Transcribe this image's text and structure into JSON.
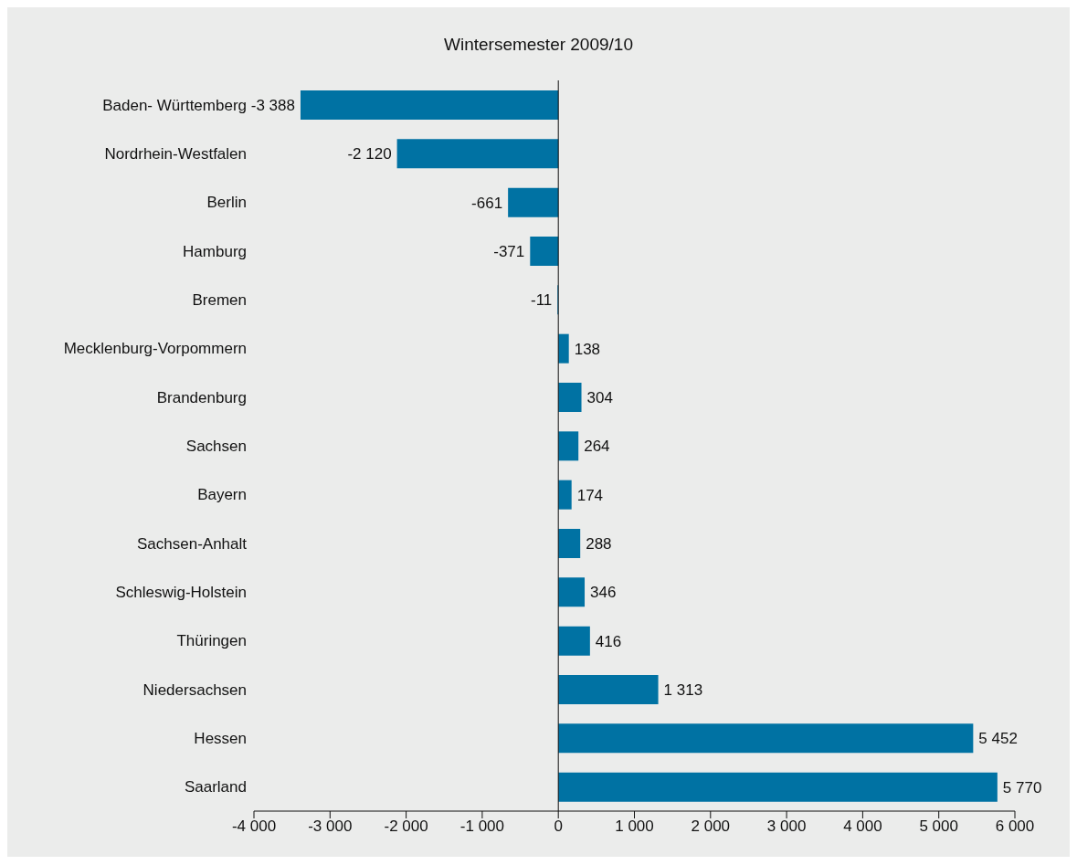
{
  "chart_data": {
    "type": "bar",
    "orientation": "horizontal",
    "title": "Wintersemester 2009/10",
    "categories": [
      "Baden- Württemberg",
      "Nordrhein-Westfalen",
      "Berlin",
      "Hamburg",
      "Bremen",
      "Mecklenburg-Vorpommern",
      "Brandenburg",
      "Sachsen",
      "Bayern",
      "Sachsen-Anhalt",
      "Schleswig-Holstein",
      "Thüringen",
      "Niedersachsen",
      "Hessen",
      "Saarland"
    ],
    "values": [
      -3388,
      -2120,
      -661,
      -371,
      -11,
      138,
      304,
      264,
      174,
      288,
      346,
      416,
      1313,
      5452,
      5770
    ],
    "value_labels": [
      "-3 388",
      "-2 120",
      "-661",
      "-371",
      "-11",
      "138",
      "304",
      "264",
      "174",
      "288",
      "346",
      "416",
      "1 313",
      "5 452",
      "5 770"
    ],
    "color": "#0072a3",
    "xlim": [
      -4000,
      6000
    ],
    "xticks": [
      {
        "value": -4000,
        "label": "-4 000"
      },
      {
        "value": -3000,
        "label": "-3 000"
      },
      {
        "value": -2000,
        "label": "-2 000"
      },
      {
        "value": -1000,
        "label": "-1 000"
      },
      0,
      {
        "value": 1000,
        "label": "1 000"
      },
      {
        "value": 2000,
        "label": "2 000"
      },
      {
        "value": 3000,
        "label": "3 000"
      },
      {
        "value": 4000,
        "label": "4 000"
      },
      {
        "value": 5000,
        "label": "5 000"
      },
      {
        "value": 6000,
        "label": "6 000"
      }
    ],
    "ref_lines": [
      {
        "axis": "x",
        "value": 0,
        "color": "#111111"
      }
    ],
    "legend": false
  }
}
